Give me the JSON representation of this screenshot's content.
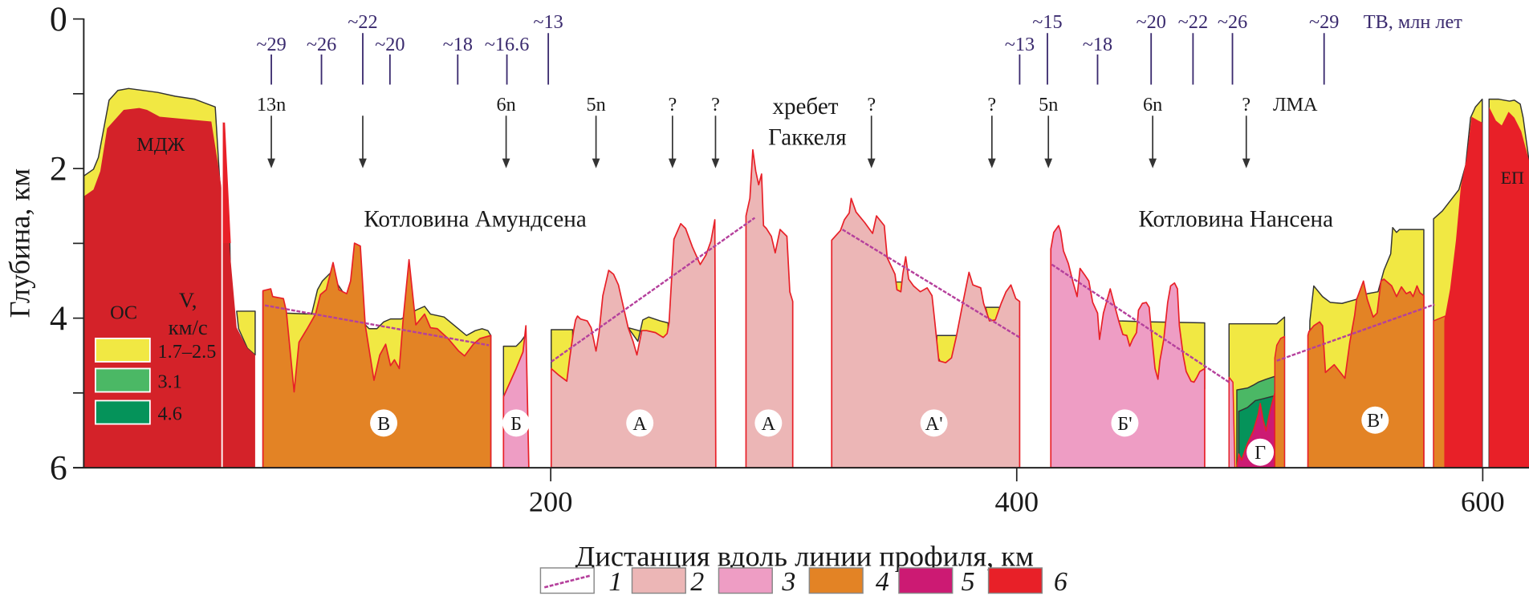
{
  "axes": {
    "y_label": "Глубина, км",
    "x_label": "Дистанция вдоль линии профиля, км",
    "y_ticks": [
      "0",
      "2",
      "4",
      "6"
    ],
    "x_ticks": [
      "200",
      "400",
      "600"
    ],
    "y_range_km": [
      0,
      6
    ],
    "x_range_km": [
      0,
      620
    ]
  },
  "titles": {
    "amundsen": "Котловина Амундсена",
    "nansen": "Котловина  Нансена",
    "gakkel_1": "хребет",
    "gakkel_2": "Гаккеля",
    "mdzh": "МДЖ",
    "ep": "ЕП",
    "lma": "ЛМА",
    "age_unit": "ТВ, млн лет"
  },
  "ages": [
    "~29",
    "~26",
    "~22",
    "~20",
    "~18",
    "~16.6",
    "~13",
    "~13",
    "~15",
    "~18",
    "~20",
    "~22",
    "~26",
    "~29"
  ],
  "anomalies": [
    "13n",
    "",
    "6n",
    "5n",
    "?",
    "?",
    "?",
    "?",
    "5n",
    "6n",
    "?"
  ],
  "blocks": [
    "В",
    "Б",
    "А",
    "А",
    "А'",
    "Б'",
    "Г",
    "В'"
  ],
  "velocity_legend": {
    "os_label": "ОС",
    "v_label": "V,",
    "unit": "км/с",
    "items": [
      {
        "label": "1.7–2.5",
        "color": "#f1e843"
      },
      {
        "label": "3.1",
        "color": "#4bb865"
      },
      {
        "label": "4.6",
        "color": "#05935a"
      }
    ]
  },
  "legend": [
    {
      "label": "1",
      "kind": "trend-line",
      "color": "#b5409c"
    },
    {
      "label": "2",
      "kind": "fill",
      "color": "#ecb6b6"
    },
    {
      "label": "3",
      "kind": "fill",
      "color": "#ee9dc4"
    },
    {
      "label": "4",
      "kind": "fill",
      "color": "#e38325"
    },
    {
      "label": "5",
      "kind": "fill",
      "color": "#cc1a73"
    },
    {
      "label": "6",
      "kind": "fill",
      "color": "#e82028"
    }
  ],
  "colors": {
    "sediment": "#f1e843",
    "crust_2": "#ecb6b6",
    "crust_3": "#ee9dc4",
    "crust_4": "#e38325",
    "crust_5": "#cc1a73",
    "crust_6": "#e82028",
    "mdzh": "#d42229",
    "annotation": "#3a2a6e",
    "trend": "#b5409c"
  }
}
